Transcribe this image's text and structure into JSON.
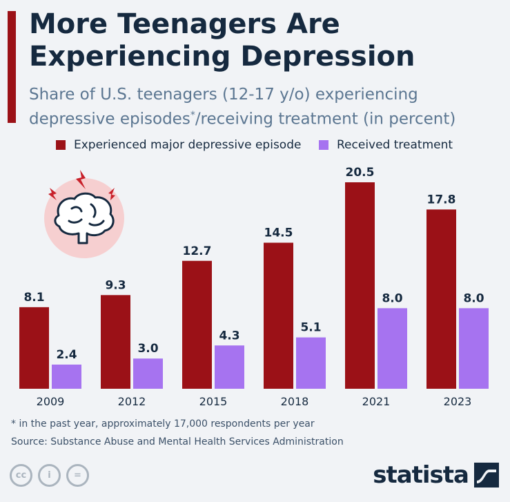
{
  "header": {
    "title": "More Teenagers Are Experiencing Depression",
    "subtitle_part1": "Share of U.S. teenagers (12-17 y/o) experiencing depressive episodes",
    "subtitle_mark": "*",
    "subtitle_part2": "/receiving treatment (in percent)"
  },
  "colors": {
    "accent": "#9b1117",
    "series_1": "#9b1117",
    "series_2": "#a673f0",
    "text": "#15293f",
    "muted": "#5b7691"
  },
  "chart_data": {
    "type": "bar",
    "categories": [
      "2009",
      "2012",
      "2015",
      "2018",
      "2021",
      "2023"
    ],
    "series": [
      {
        "name": "Experienced major depressive episode",
        "values": [
          8.1,
          9.3,
          12.7,
          14.5,
          20.5,
          17.8
        ]
      },
      {
        "name": "Received treatment",
        "values": [
          2.4,
          3.0,
          4.3,
          5.1,
          8.0,
          8.0
        ]
      }
    ],
    "ylim": [
      0,
      20.5
    ],
    "grid": false,
    "legend_position": "top"
  },
  "illustration": {
    "icon": "brain-icon"
  },
  "footer": {
    "footnote": "* in the past year, approximately 17,000 respondents per year",
    "source": "Source: Substance Abuse and Mental Health Services Administration",
    "brand": "statista",
    "license_icons": [
      "cc-icon",
      "person-icon",
      "equals-icon"
    ]
  }
}
